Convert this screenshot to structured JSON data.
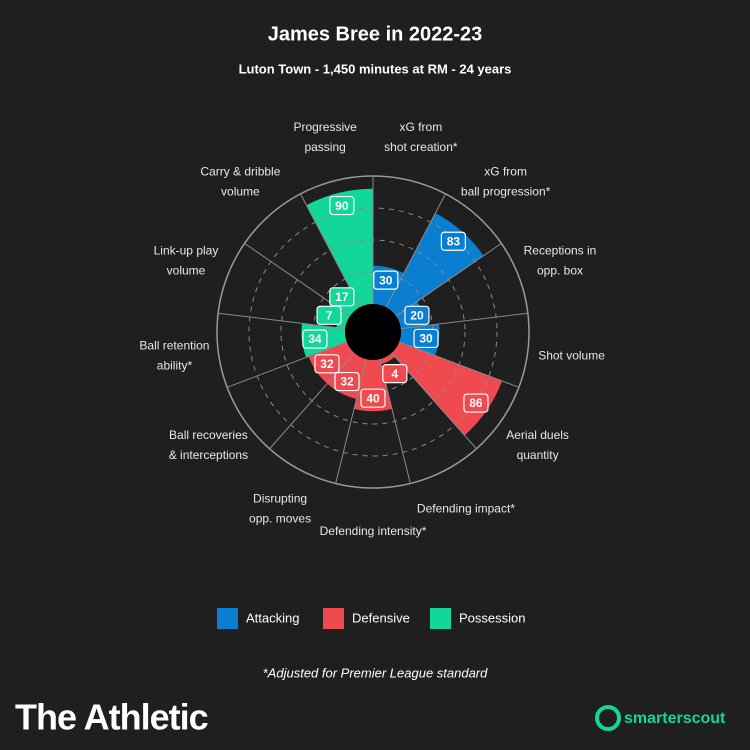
{
  "chart_data": {
    "type": "polar-bar",
    "title": "James Bree in 2022-23",
    "subtitle": "Luton Town - 1,450 minutes at RM - 24 years",
    "categories": [
      [
        "xG from",
        "shot creation*"
      ],
      [
        "xG from",
        "ball progression*"
      ],
      [
        "Receptions in",
        "opp. box"
      ],
      [
        "Shot volume"
      ],
      [
        "Aerial duels",
        "quantity"
      ],
      [
        "Defending impact*"
      ],
      [
        "Defending intensity*"
      ],
      [
        "Disrupting",
        "opp. moves"
      ],
      [
        "Ball recoveries",
        "& interceptions"
      ],
      [
        "Ball retention",
        "ability*"
      ],
      [
        "Link-up play",
        "volume"
      ],
      [
        "Carry & dribble",
        "volume"
      ],
      [
        "Progressive",
        "passing"
      ]
    ],
    "series": [
      {
        "name": "Attacking",
        "color": "#0a7fd1",
        "values": [
          30,
          83,
          20,
          30,
          null,
          null,
          null,
          null,
          null,
          null,
          null,
          null,
          null
        ]
      },
      {
        "name": "Defensive",
        "color": "#ef4a4f",
        "values": [
          null,
          null,
          null,
          null,
          86,
          4,
          40,
          32,
          32,
          null,
          null,
          null,
          null
        ]
      },
      {
        "name": "Possession",
        "color": "#12d69a",
        "values": [
          null,
          null,
          null,
          null,
          null,
          null,
          null,
          null,
          null,
          34,
          7,
          17,
          90
        ]
      }
    ],
    "rlim": [
      0,
      100
    ],
    "rticks": [
      25,
      50,
      75,
      100
    ],
    "note": "*Adjusted for Premier League standard"
  },
  "branding": {
    "publisher": "The Athletic",
    "source": "smarterscout"
  }
}
